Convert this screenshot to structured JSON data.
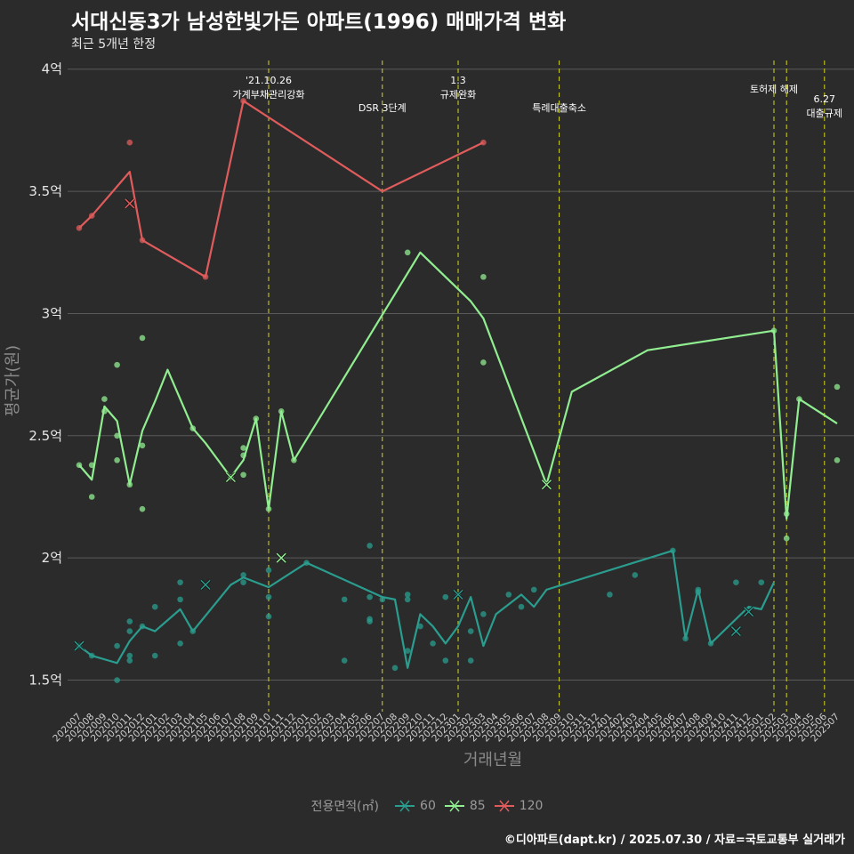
{
  "header": {
    "title": "서대신동3가 남성한빛가든 아파트(1996) 매매가격 변화",
    "subtitle": "최근 5개년 한정"
  },
  "caption": "©디아파트(dapt.kr) / 2025.07.30 / 자료=국토교통부 실거래가",
  "legend": {
    "title": "전용면적(㎡)",
    "items": [
      {
        "label": "60",
        "color": "#2a9d8f"
      },
      {
        "label": "85",
        "color": "#90ee90"
      },
      {
        "label": "120",
        "color": "#e05c5c"
      }
    ]
  },
  "chart_data": {
    "type": "line",
    "xlabel": "거래년월",
    "ylabel": "평균가(원)",
    "ylim": [
      1.4,
      4.05
    ],
    "yticks": [
      {
        "value": 1.5,
        "label": "1.5억"
      },
      {
        "value": 2.0,
        "label": "2억"
      },
      {
        "value": 2.5,
        "label": "2.5억"
      },
      {
        "value": 3.0,
        "label": "3억"
      },
      {
        "value": 3.5,
        "label": "3.5억"
      },
      {
        "value": 4.0,
        "label": "4억"
      }
    ],
    "grid": true,
    "legend_position": "bottom",
    "categories": [
      "202007",
      "202008",
      "202009",
      "202010",
      "202011",
      "202012",
      "202101",
      "202102",
      "202103",
      "202104",
      "202105",
      "202106",
      "202107",
      "202108",
      "202109",
      "202110",
      "202111",
      "202112",
      "202201",
      "202202",
      "202203",
      "202204",
      "202205",
      "202206",
      "202207",
      "202208",
      "202209",
      "202210",
      "202211",
      "202212",
      "202301",
      "202302",
      "202303",
      "202304",
      "202305",
      "202306",
      "202307",
      "202308",
      "202309",
      "202310",
      "202311",
      "202312",
      "202401",
      "202402",
      "202403",
      "202404",
      "202405",
      "202406",
      "202407",
      "202408",
      "202409",
      "202410",
      "202411",
      "202412",
      "202501",
      "202502",
      "202503",
      "202504",
      "202505",
      "202506",
      "202507"
    ],
    "annotations": [
      {
        "x": "202110",
        "lines": [
          "'21.10.26",
          "가계부채관리강화"
        ],
        "level": 1
      },
      {
        "x": "202207",
        "lines": [
          "DSR 3단계"
        ],
        "level": 2
      },
      {
        "x": "202301",
        "lines": [
          "1.3",
          "규제완화"
        ],
        "level": 1
      },
      {
        "x": "202309",
        "lines": [
          "특례대출축소"
        ],
        "level": 2
      },
      {
        "x": "202502",
        "lines": [
          "토허제 해제"
        ],
        "level": 1
      },
      {
        "x": "202503",
        "lines": [],
        "level": 1
      },
      {
        "x": "202506",
        "lines": [
          "6.27",
          "대출규제"
        ],
        "level": 3
      }
    ],
    "series": [
      {
        "name": "60",
        "color": "#2a9d8f",
        "values": [
          1.64,
          1.6,
          null,
          1.57,
          1.66,
          1.72,
          1.7,
          null,
          1.79,
          1.7,
          null,
          null,
          1.89,
          1.92,
          null,
          1.88,
          null,
          null,
          1.98,
          null,
          null,
          null,
          null,
          null,
          1.84,
          1.83,
          1.55,
          1.77,
          1.72,
          1.65,
          1.72,
          1.84,
          1.64,
          1.77,
          null,
          1.85,
          1.8,
          1.87,
          null,
          null,
          null,
          null,
          null,
          null,
          null,
          null,
          null,
          2.03,
          1.67,
          1.87,
          1.65,
          null,
          null,
          1.8,
          1.79,
          1.9,
          null,
          null,
          null,
          null,
          null
        ],
        "points": [
          {
            "x": "202007",
            "y": 1.64
          },
          {
            "x": "202008",
            "y": 1.6
          },
          {
            "x": "202010",
            "y": 1.5
          },
          {
            "x": "202010",
            "y": 1.64
          },
          {
            "x": "202011",
            "y": 1.74
          },
          {
            "x": "202011",
            "y": 1.7
          },
          {
            "x": "202011",
            "y": 1.6
          },
          {
            "x": "202011",
            "y": 1.58
          },
          {
            "x": "202012",
            "y": 1.72
          },
          {
            "x": "202101",
            "y": 1.8
          },
          {
            "x": "202101",
            "y": 1.6
          },
          {
            "x": "202103",
            "y": 1.9
          },
          {
            "x": "202103",
            "y": 1.83
          },
          {
            "x": "202103",
            "y": 1.65
          },
          {
            "x": "202104",
            "y": 1.7
          },
          {
            "x": "202108",
            "y": 1.9
          },
          {
            "x": "202108",
            "y": 1.93
          },
          {
            "x": "202110",
            "y": 1.95
          },
          {
            "x": "202110",
            "y": 1.84
          },
          {
            "x": "202110",
            "y": 1.76
          },
          {
            "x": "202201",
            "y": 1.98
          },
          {
            "x": "202204",
            "y": 1.83
          },
          {
            "x": "202204",
            "y": 1.58
          },
          {
            "x": "202206",
            "y": 2.05
          },
          {
            "x": "202206",
            "y": 1.84
          },
          {
            "x": "202206",
            "y": 1.75
          },
          {
            "x": "202206",
            "y": 1.74
          },
          {
            "x": "202207",
            "y": 1.83
          },
          {
            "x": "202208",
            "y": 1.55
          },
          {
            "x": "202209",
            "y": 1.85
          },
          {
            "x": "202209",
            "y": 1.83
          },
          {
            "x": "202209",
            "y": 1.62
          },
          {
            "x": "202210",
            "y": 1.72
          },
          {
            "x": "202211",
            "y": 1.65
          },
          {
            "x": "202212",
            "y": 1.84
          },
          {
            "x": "202212",
            "y": 1.58
          },
          {
            "x": "202301",
            "y": 1.85
          },
          {
            "x": "202302",
            "y": 1.7
          },
          {
            "x": "202302",
            "y": 1.58
          },
          {
            "x": "202303",
            "y": 1.77
          },
          {
            "x": "202305",
            "y": 1.85
          },
          {
            "x": "202306",
            "y": 1.8
          },
          {
            "x": "202307",
            "y": 1.87
          },
          {
            "x": "202401",
            "y": 1.85
          },
          {
            "x": "202403",
            "y": 1.93
          },
          {
            "x": "202406",
            "y": 2.03
          },
          {
            "x": "202407",
            "y": 1.67
          },
          {
            "x": "202408",
            "y": 1.87
          },
          {
            "x": "202408",
            "y": 1.86
          },
          {
            "x": "202409",
            "y": 1.65
          },
          {
            "x": "202411",
            "y": 1.9
          },
          {
            "x": "202412",
            "y": 1.79
          },
          {
            "x": "202501",
            "y": 1.9
          }
        ],
        "crosses": [
          {
            "x": "202007",
            "y": 1.64
          },
          {
            "x": "202105",
            "y": 1.89
          },
          {
            "x": "202301",
            "y": 1.85
          },
          {
            "x": "202411",
            "y": 1.7
          },
          {
            "x": "202412",
            "y": 1.78
          }
        ]
      },
      {
        "name": "85",
        "color": "#90ee90",
        "values": [
          2.38,
          2.32,
          2.62,
          2.56,
          2.3,
          2.52,
          2.64,
          2.77,
          null,
          2.53,
          2.47,
          null,
          2.33,
          2.4,
          2.57,
          2.2,
          2.6,
          2.4,
          null,
          null,
          null,
          null,
          null,
          null,
          null,
          null,
          null,
          3.25,
          null,
          null,
          null,
          3.05,
          2.98,
          null,
          null,
          null,
          null,
          2.3,
          null,
          2.68,
          null,
          null,
          null,
          null,
          null,
          2.85,
          null,
          null,
          null,
          null,
          null,
          null,
          null,
          null,
          null,
          2.93,
          2.16,
          2.65,
          null,
          null,
          2.55
        ],
        "points": [
          {
            "x": "202007",
            "y": 2.38
          },
          {
            "x": "202008",
            "y": 2.38
          },
          {
            "x": "202008",
            "y": 2.25
          },
          {
            "x": "202009",
            "y": 2.65
          },
          {
            "x": "202009",
            "y": 2.6
          },
          {
            "x": "202010",
            "y": 2.79
          },
          {
            "x": "202010",
            "y": 2.5
          },
          {
            "x": "202010",
            "y": 2.4
          },
          {
            "x": "202011",
            "y": 2.3
          },
          {
            "x": "202012",
            "y": 2.9
          },
          {
            "x": "202012",
            "y": 2.46
          },
          {
            "x": "202012",
            "y": 2.2
          },
          {
            "x": "202104",
            "y": 2.53
          },
          {
            "x": "202107",
            "y": 2.33
          },
          {
            "x": "202108",
            "y": 2.45
          },
          {
            "x": "202108",
            "y": 2.42
          },
          {
            "x": "202108",
            "y": 2.34
          },
          {
            "x": "202109",
            "y": 2.57
          },
          {
            "x": "202110",
            "y": 2.2
          },
          {
            "x": "202111",
            "y": 2.6
          },
          {
            "x": "202112",
            "y": 2.4
          },
          {
            "x": "202209",
            "y": 3.25
          },
          {
            "x": "202303",
            "y": 3.15
          },
          {
            "x": "202303",
            "y": 2.8
          },
          {
            "x": "202502",
            "y": 2.93
          },
          {
            "x": "202503",
            "y": 2.18
          },
          {
            "x": "202503",
            "y": 2.08
          },
          {
            "x": "202504",
            "y": 2.65
          },
          {
            "x": "202507",
            "y": 2.7
          },
          {
            "x": "202507",
            "y": 2.4
          }
        ],
        "crosses": [
          {
            "x": "202107",
            "y": 2.33
          },
          {
            "x": "202111",
            "y": 2.0
          },
          {
            "x": "202308",
            "y": 2.3
          }
        ]
      },
      {
        "name": "120",
        "color": "#e05c5c",
        "values": [
          3.35,
          3.4,
          null,
          null,
          3.58,
          3.3,
          null,
          null,
          null,
          null,
          3.15,
          null,
          null,
          3.87,
          null,
          null,
          null,
          null,
          null,
          null,
          null,
          null,
          null,
          null,
          3.5,
          null,
          null,
          null,
          null,
          null,
          null,
          null,
          3.7,
          null,
          null,
          null,
          null,
          null,
          null,
          null,
          null,
          null,
          null,
          null,
          null,
          null,
          null,
          null,
          null,
          null,
          null,
          null,
          null,
          null,
          null,
          null,
          null,
          null,
          null,
          null,
          null
        ],
        "points": [
          {
            "x": "202007",
            "y": 3.35
          },
          {
            "x": "202008",
            "y": 3.4
          },
          {
            "x": "202011",
            "y": 3.7
          },
          {
            "x": "202012",
            "y": 3.3
          },
          {
            "x": "202105",
            "y": 3.15
          },
          {
            "x": "202108",
            "y": 3.87
          },
          {
            "x": "202303",
            "y": 3.7
          }
        ],
        "crosses": [
          {
            "x": "202011",
            "y": 3.45
          }
        ]
      }
    ]
  }
}
